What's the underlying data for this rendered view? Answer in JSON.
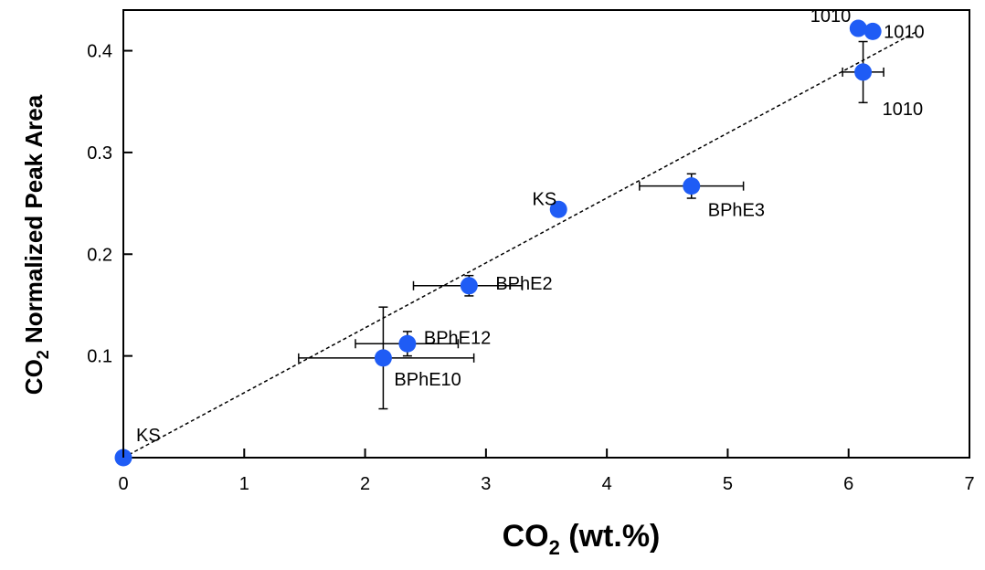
{
  "chart_data": {
    "type": "scatter",
    "xlabel": "CO2 (wt.%)",
    "xlabel_parts": {
      "main": "CO",
      "sub": "2",
      "rest": " (wt.%)"
    },
    "ylabel": "CO2 Normalized Peak Area",
    "ylabel_parts": {
      "main": "CO",
      "sub": "2",
      "rest": " Normalized Peak Area"
    },
    "xlim": [
      0,
      7
    ],
    "ylim": [
      0,
      0.44
    ],
    "xticks": [
      0,
      1,
      2,
      3,
      4,
      5,
      6,
      7
    ],
    "yticks": [
      0.1,
      0.2,
      0.3,
      0.4
    ],
    "xtick_labels": [
      "0",
      "1",
      "2",
      "3",
      "4",
      "5",
      "6",
      "7"
    ],
    "ytick_labels": [
      "0.1",
      "0.2",
      "0.3",
      "0.4"
    ],
    "grid": false,
    "marker_color": "#1f5cf5",
    "points": [
      {
        "label": "KS",
        "x": 0.0,
        "y": 0.0,
        "xerr": null,
        "yerr": null
      },
      {
        "label": "BPhE10",
        "x": 2.15,
        "y": 0.098,
        "xerr": [
          1.45,
          2.9
        ],
        "yerr": [
          0.048,
          0.148
        ]
      },
      {
        "label": "BPhE12",
        "x": 2.35,
        "y": 0.112,
        "xerr": [
          1.92,
          2.77
        ],
        "yerr": [
          0.1,
          0.124
        ]
      },
      {
        "label": "BPhE2",
        "x": 2.86,
        "y": 0.169,
        "xerr": [
          2.4,
          3.3
        ],
        "yerr": [
          0.159,
          0.179
        ]
      },
      {
        "label": "KS",
        "x": 3.6,
        "y": 0.244,
        "xerr": null,
        "yerr": null
      },
      {
        "label": "BPhE3",
        "x": 4.7,
        "y": 0.267,
        "xerr": [
          4.27,
          5.13
        ],
        "yerr": [
          0.255,
          0.279
        ]
      },
      {
        "label": "1010",
        "x": 6.12,
        "y": 0.379,
        "xerr": [
          5.95,
          6.29
        ],
        "yerr": [
          0.349,
          0.409
        ]
      },
      {
        "label": "1010",
        "x": 6.08,
        "y": 0.422,
        "xerr": null,
        "yerr": null
      },
      {
        "label": "1010",
        "x": 6.2,
        "y": 0.419,
        "xerr": null,
        "yerr": null
      }
    ],
    "trendline": {
      "style": "dashed",
      "x": [
        0,
        6.55
      ],
      "y": [
        0,
        0.418
      ]
    }
  }
}
